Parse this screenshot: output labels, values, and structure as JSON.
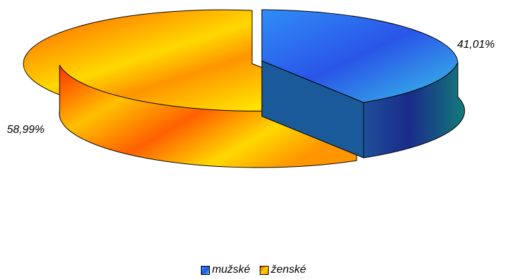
{
  "chart_data": {
    "type": "pie",
    "style": "3d-exploded",
    "slices": [
      {
        "label": "mužské",
        "value": 41.01,
        "value_label": "41,01%",
        "color": "#3a7df0"
      },
      {
        "label": "ženské",
        "value": 58.99,
        "value_label": "58,99%",
        "color": "#f5b400"
      }
    ],
    "legend": {
      "position": "bottom"
    }
  }
}
